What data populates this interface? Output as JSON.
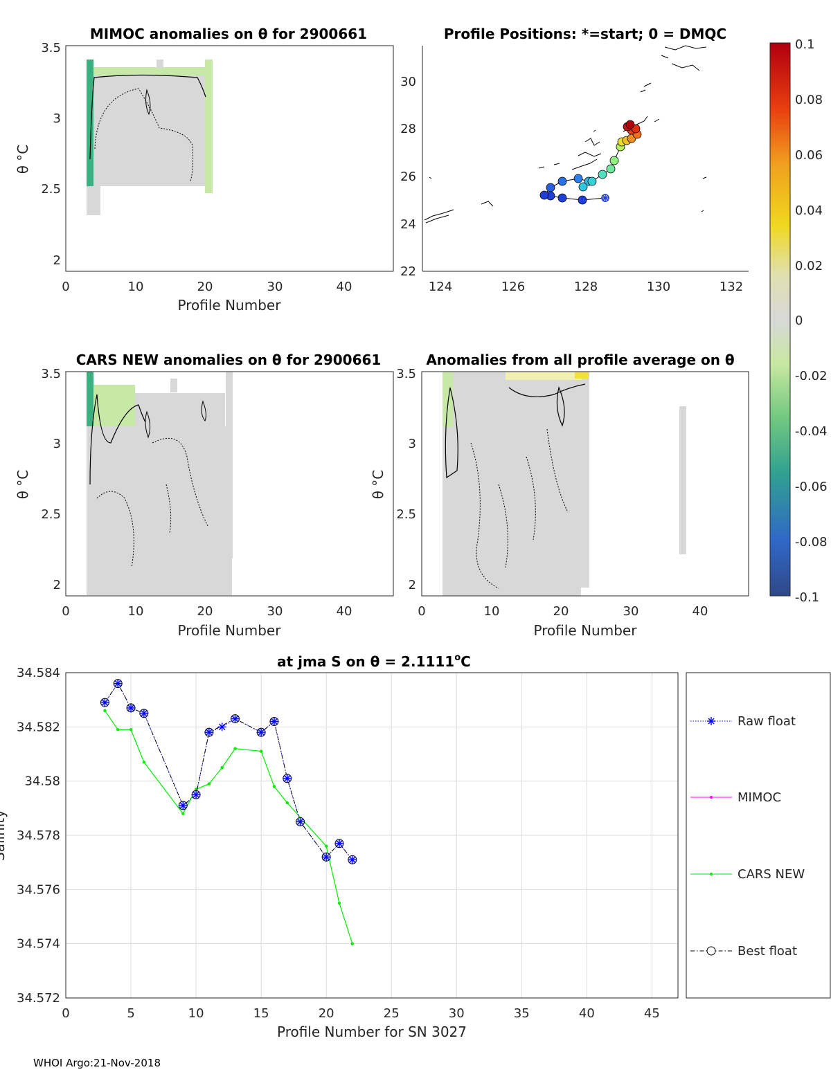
{
  "panels": {
    "mimoc": {
      "title": "MIMOC anomalies on θ  for 2900661",
      "ylabel": "θ °C",
      "xlabel": "Profile Number",
      "xticks": [
        "0",
        "10",
        "20",
        "30",
        "40"
      ],
      "yticks": [
        "2",
        "2.5",
        "3",
        "3.5"
      ]
    },
    "positions": {
      "title": "Profile Positions: *=start; 0 = DMQC",
      "xticks": [
        "124",
        "126",
        "128",
        "130",
        "132"
      ],
      "yticks": [
        "22",
        "24",
        "26",
        "28",
        "30"
      ]
    },
    "cars": {
      "title": "CARS NEW anomalies on θ for 2900661",
      "ylabel": "θ °C",
      "xlabel": "Profile Number",
      "xticks": [
        "0",
        "10",
        "20",
        "30",
        "40"
      ],
      "yticks": [
        "2",
        "2.5",
        "3",
        "3.5"
      ]
    },
    "avg": {
      "title": "Anomalies from all profile average on θ",
      "ylabel": "θ °C",
      "xlabel": "Profile Number",
      "xticks": [
        "0",
        "10",
        "20",
        "30",
        "40"
      ],
      "yticks": [
        "2",
        "2.5",
        "3",
        "3.5"
      ]
    }
  },
  "colorbar": {
    "ticks": [
      "0.1",
      "0.08",
      "0.06",
      "0.04",
      "0.02",
      "0",
      "-0.02",
      "-0.04",
      "-0.06",
      "-0.08",
      "-0.1"
    ],
    "stops": [
      "#c00010",
      "#e84010",
      "#f0a020",
      "#f0d020",
      "#d8d8d8",
      "#a8e080",
      "#50c080",
      "#2090b0",
      "#3060c0",
      "#304888"
    ]
  },
  "footer": "WHOI Argo:21-Nov-2018",
  "chart_data": {
    "type": "line",
    "title_prefix": "at jma S on ",
    "title_sym": "θ",
    "title_eq": " = 2.1111",
    "title_deg": "o",
    "title_unit": "C",
    "xlabel": "Profile Number for SN 3027",
    "ylabel": "Salinity",
    "xlim": [
      0,
      47
    ],
    "ylim": [
      34.572,
      34.584
    ],
    "xticks": [
      "0",
      "5",
      "10",
      "15",
      "20",
      "25",
      "30",
      "35",
      "40",
      "45"
    ],
    "yticks": [
      "34.572",
      "34.574",
      "34.576",
      "34.578",
      "34.58",
      "34.582",
      "34.584"
    ],
    "legend": [
      "Raw float",
      "MIMOC",
      "CARS NEW",
      "Best float"
    ],
    "series": [
      {
        "name": "Raw float",
        "color": "#0000ff",
        "x": [
          3,
          4,
          5,
          6,
          9,
          10,
          11,
          12,
          13,
          15,
          16,
          17,
          18,
          20,
          21,
          22
        ],
        "values": [
          34.5829,
          34.5836,
          34.5827,
          34.5825,
          34.5791,
          34.5795,
          34.5818,
          34.582,
          34.5823,
          34.5818,
          34.5822,
          34.5801,
          34.5785,
          34.5772,
          34.5777,
          34.5771
        ]
      },
      {
        "name": "CARS NEW",
        "color": "#00ee00",
        "x": [
          3,
          4,
          5,
          6,
          9,
          10,
          11,
          12,
          13,
          15,
          16,
          17,
          20,
          21,
          22
        ],
        "values": [
          34.5826,
          34.5819,
          34.5819,
          34.5807,
          34.5788,
          34.5797,
          34.5799,
          34.5805,
          34.5812,
          34.5811,
          34.5798,
          34.5792,
          34.5776,
          34.5755,
          34.574
        ]
      },
      {
        "name": "Best float",
        "color": "#000000",
        "x": [
          3,
          4,
          5,
          6,
          9,
          10,
          11,
          13,
          15,
          16,
          17,
          18,
          20,
          21,
          22
        ],
        "values": [
          34.5829,
          34.5836,
          34.5827,
          34.5825,
          34.5791,
          34.5795,
          34.5818,
          34.5823,
          34.5818,
          34.5822,
          34.5801,
          34.5785,
          34.5772,
          34.5777,
          34.5771
        ]
      }
    ]
  }
}
